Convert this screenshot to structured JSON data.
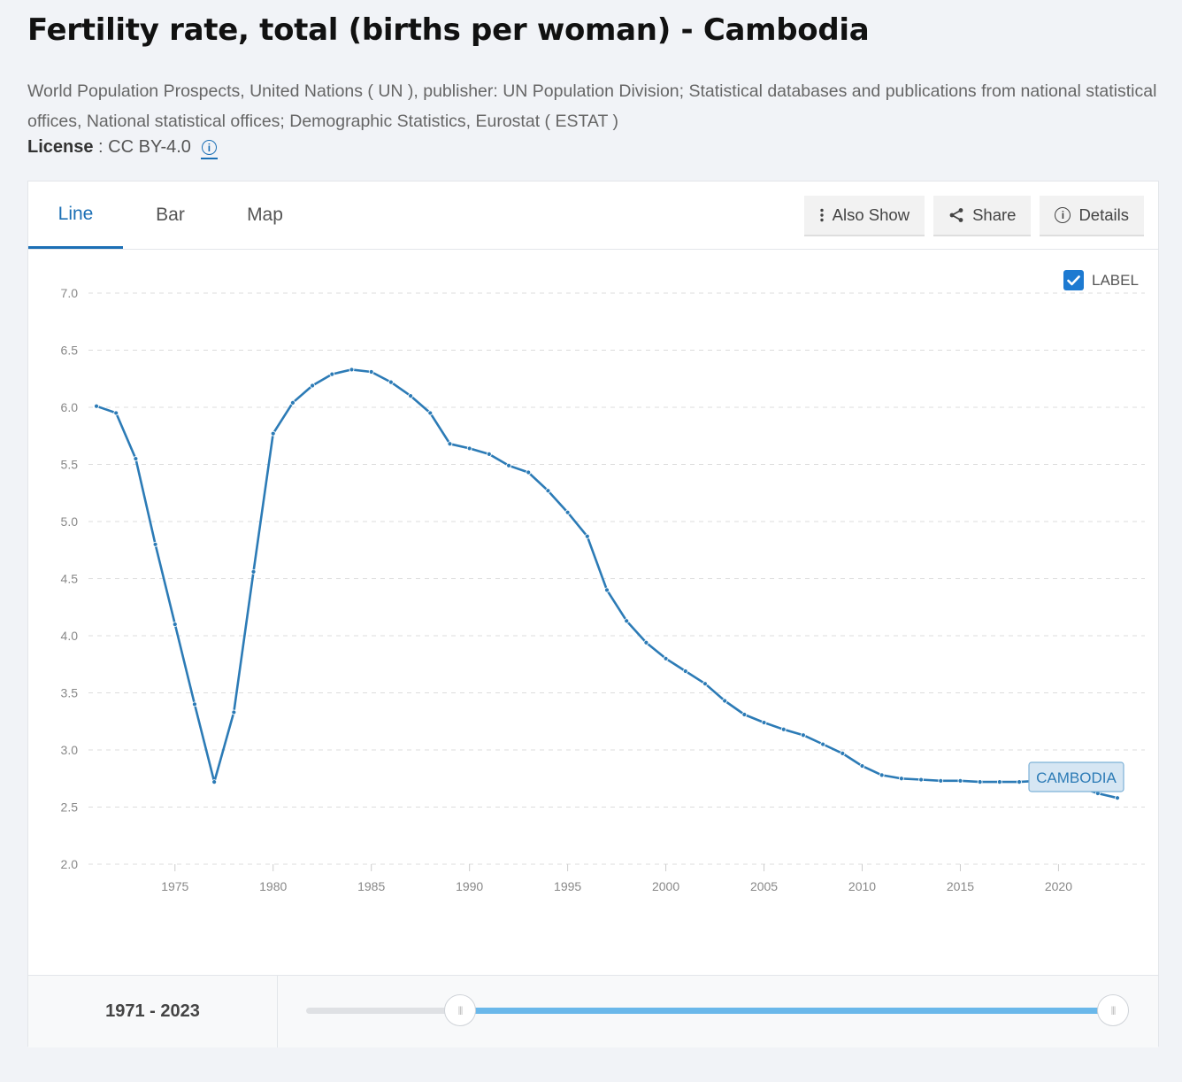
{
  "header": {
    "title": "Fertility rate, total (births per woman) - Cambodia",
    "source": "World Population Prospects, United Nations ( UN ), publisher: UN Population Division; Statistical databases and publications from national statistical offices, National statistical offices; Demographic Statistics, Eurostat ( ESTAT )",
    "license_label": "License",
    "license_value": " : CC BY-4.0"
  },
  "tabs": [
    {
      "label": "Line",
      "active": true
    },
    {
      "label": "Bar",
      "active": false
    },
    {
      "label": "Map",
      "active": false
    }
  ],
  "actions": {
    "also_show": "Also Show",
    "share": "Share",
    "details": "Details"
  },
  "label_toggle": {
    "text": "LABEL",
    "checked": true
  },
  "range": {
    "text": "1971 - 2023",
    "start": 1971,
    "end": 2023
  },
  "colors": {
    "line": "#2c7bb6",
    "accent": "#1b6fb5",
    "slider": "#6ab8ea"
  },
  "chart_data": {
    "type": "line",
    "title": "",
    "xlabel": "",
    "ylabel": "",
    "ylim": [
      2.0,
      7.0
    ],
    "yticks": [
      "2.0",
      "2.5",
      "3.0",
      "3.5",
      "4.0",
      "4.5",
      "5.0",
      "5.5",
      "6.0",
      "6.5",
      "7.0"
    ],
    "xticks": [
      "1975",
      "1980",
      "1985",
      "1990",
      "1995",
      "2000",
      "2005",
      "2010",
      "2015",
      "2020"
    ],
    "grid": true,
    "series": [
      {
        "name": "CAMBODIA",
        "x": [
          1971,
          1972,
          1973,
          1974,
          1975,
          1976,
          1977,
          1978,
          1979,
          1980,
          1981,
          1982,
          1983,
          1984,
          1985,
          1986,
          1987,
          1988,
          1989,
          1990,
          1991,
          1992,
          1993,
          1994,
          1995,
          1996,
          1997,
          1998,
          1999,
          2000,
          2001,
          2002,
          2003,
          2004,
          2005,
          2006,
          2007,
          2008,
          2009,
          2010,
          2011,
          2012,
          2013,
          2014,
          2015,
          2016,
          2017,
          2018,
          2019,
          2020,
          2021,
          2022,
          2023
        ],
        "values": [
          6.01,
          5.95,
          5.55,
          4.8,
          4.1,
          3.4,
          2.72,
          3.33,
          4.56,
          5.77,
          6.04,
          6.19,
          6.29,
          6.33,
          6.31,
          6.22,
          6.1,
          5.95,
          5.68,
          5.64,
          5.59,
          5.49,
          5.43,
          5.27,
          5.08,
          4.87,
          4.4,
          4.13,
          3.94,
          3.8,
          3.69,
          3.58,
          3.43,
          3.31,
          3.24,
          3.18,
          3.13,
          3.05,
          2.97,
          2.86,
          2.78,
          2.75,
          2.74,
          2.73,
          2.73,
          2.72,
          2.72,
          2.72,
          2.73,
          2.71,
          2.68,
          2.62,
          2.58
        ]
      }
    ]
  }
}
